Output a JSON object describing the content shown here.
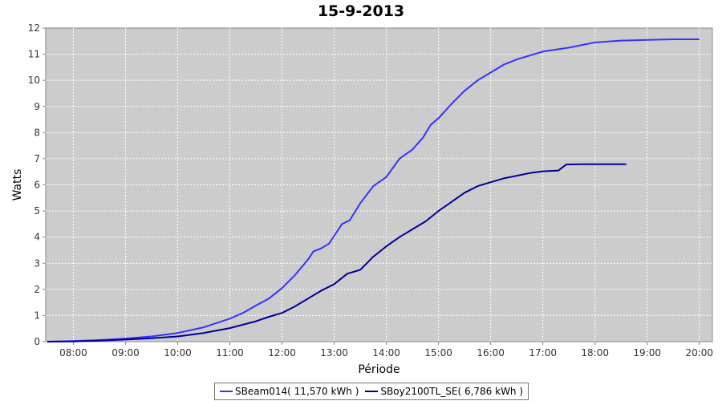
{
  "chart_data": {
    "type": "line",
    "title": "15-9-2013",
    "xlabel": "Période",
    "ylabel": "Watts",
    "x_ticks": [
      "08:00",
      "09:00",
      "10:00",
      "11:00",
      "12:00",
      "13:00",
      "14:00",
      "15:00",
      "16:00",
      "17:00",
      "18:00",
      "19:00",
      "20:00"
    ],
    "y_ticks": [
      0,
      1,
      2,
      3,
      4,
      5,
      6,
      7,
      8,
      9,
      10,
      11,
      12
    ],
    "xlim_hours": [
      7.47,
      20.25
    ],
    "ylim": [
      0,
      12
    ],
    "grid": true,
    "background": "#cccccc",
    "legend_position": "bottom",
    "series": [
      {
        "name": "SBeam014( 11,570 kWh )",
        "color": "#3333ff",
        "points": [
          [
            7.5,
            0
          ],
          [
            8.0,
            0.02
          ],
          [
            8.5,
            0.06
          ],
          [
            9.0,
            0.12
          ],
          [
            9.5,
            0.2
          ],
          [
            10.0,
            0.33
          ],
          [
            10.5,
            0.55
          ],
          [
            11.0,
            0.88
          ],
          [
            11.25,
            1.1
          ],
          [
            11.5,
            1.38
          ],
          [
            11.75,
            1.65
          ],
          [
            12.0,
            2.05
          ],
          [
            12.25,
            2.55
          ],
          [
            12.5,
            3.15
          ],
          [
            12.6,
            3.45
          ],
          [
            12.75,
            3.57
          ],
          [
            12.9,
            3.75
          ],
          [
            13.0,
            4.05
          ],
          [
            13.15,
            4.5
          ],
          [
            13.3,
            4.65
          ],
          [
            13.5,
            5.3
          ],
          [
            13.75,
            5.95
          ],
          [
            14.0,
            6.3
          ],
          [
            14.25,
            7.0
          ],
          [
            14.5,
            7.35
          ],
          [
            14.7,
            7.8
          ],
          [
            14.85,
            8.3
          ],
          [
            15.0,
            8.55
          ],
          [
            15.25,
            9.1
          ],
          [
            15.5,
            9.6
          ],
          [
            15.75,
            10.0
          ],
          [
            16.0,
            10.3
          ],
          [
            16.25,
            10.6
          ],
          [
            16.5,
            10.8
          ],
          [
            16.75,
            10.95
          ],
          [
            17.0,
            11.1
          ],
          [
            17.5,
            11.25
          ],
          [
            18.0,
            11.45
          ],
          [
            18.5,
            11.52
          ],
          [
            19.0,
            11.55
          ],
          [
            19.5,
            11.57
          ],
          [
            20.0,
            11.57
          ]
        ]
      },
      {
        "name": "SBoy2100TL_SE( 6,786 kWh )",
        "color": "#000099",
        "points": [
          [
            7.5,
            0
          ],
          [
            8.0,
            0.01
          ],
          [
            8.5,
            0.04
          ],
          [
            9.0,
            0.08
          ],
          [
            9.5,
            0.13
          ],
          [
            10.0,
            0.2
          ],
          [
            10.5,
            0.33
          ],
          [
            11.0,
            0.52
          ],
          [
            11.5,
            0.78
          ],
          [
            11.75,
            0.95
          ],
          [
            12.0,
            1.1
          ],
          [
            12.25,
            1.35
          ],
          [
            12.5,
            1.65
          ],
          [
            12.75,
            1.95
          ],
          [
            13.0,
            2.2
          ],
          [
            13.25,
            2.6
          ],
          [
            13.5,
            2.75
          ],
          [
            13.75,
            3.25
          ],
          [
            14.0,
            3.65
          ],
          [
            14.25,
            4.0
          ],
          [
            14.5,
            4.3
          ],
          [
            14.75,
            4.6
          ],
          [
            15.0,
            5.0
          ],
          [
            15.25,
            5.35
          ],
          [
            15.5,
            5.7
          ],
          [
            15.75,
            5.95
          ],
          [
            16.0,
            6.1
          ],
          [
            16.25,
            6.25
          ],
          [
            16.5,
            6.35
          ],
          [
            16.75,
            6.45
          ],
          [
            17.0,
            6.52
          ],
          [
            17.3,
            6.55
          ],
          [
            17.45,
            6.78
          ],
          [
            17.75,
            6.79
          ],
          [
            18.0,
            6.79
          ],
          [
            18.6,
            6.79
          ]
        ]
      }
    ]
  }
}
